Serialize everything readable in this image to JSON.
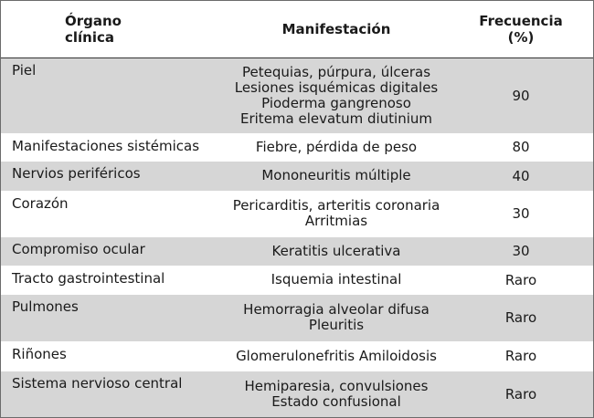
{
  "table": {
    "headers": {
      "organ_line1": "Órgano",
      "organ_line2": "clínica",
      "manifestation": "Manifestación",
      "frequency_line1": "Frecuencia",
      "frequency_line2": "(%)"
    },
    "rows": [
      {
        "organ": "Piel",
        "manifestations": [
          "Petequias, púrpura, úlceras",
          "Lesiones isquémicas digitales",
          "Pioderma gangrenoso",
          "Eritema elevatum diutinium"
        ],
        "frequency": "90"
      },
      {
        "organ": "Manifestaciones sistémicas",
        "manifestations": [
          "Fiebre, pérdida de peso"
        ],
        "frequency": "80"
      },
      {
        "organ": "Nervios periféricos",
        "manifestations": [
          "Mononeuritis múltiple"
        ],
        "frequency": "40"
      },
      {
        "organ": "Corazón",
        "manifestations": [
          "Pericarditis, arteritis coronaria",
          "Arritmias"
        ],
        "frequency": "30"
      },
      {
        "organ": "Compromiso ocular",
        "manifestations": [
          "Keratitis ulcerativa"
        ],
        "frequency": "30"
      },
      {
        "organ": "Tracto gastrointestinal",
        "manifestations": [
          "Isquemia intestinal"
        ],
        "frequency": "Raro"
      },
      {
        "organ": "Pulmones",
        "manifestations": [
          "Hemorragia alveolar difusa",
          "Pleuritis"
        ],
        "frequency": "Raro"
      },
      {
        "organ": "Riñones",
        "manifestations": [
          "Glomerulonefritis Amiloidosis"
        ],
        "frequency": "Raro"
      },
      {
        "organ": "Sistema nervioso central",
        "manifestations": [
          "Hemiparesia, convulsiones",
          "Estado confusional"
        ],
        "frequency": "Raro"
      }
    ]
  },
  "colors": {
    "shaded_row": "#d6d6d6",
    "plain_row": "#ffffff",
    "text": "#1a1a1a",
    "border": "#6b6b6b"
  }
}
